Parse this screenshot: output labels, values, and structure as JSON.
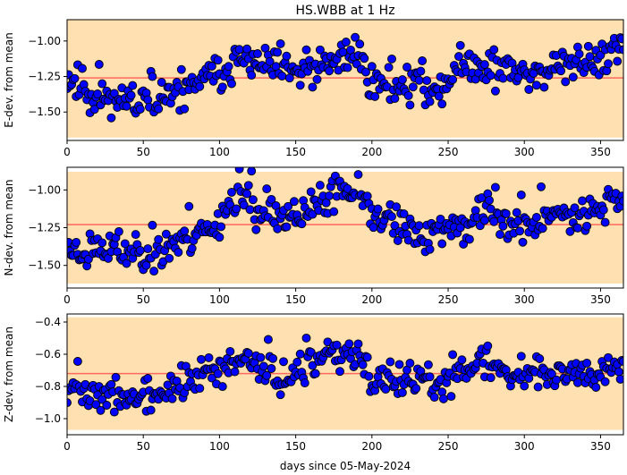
{
  "chart_data": {
    "type": "scatter",
    "title": "HS.WBB at 1 Hz",
    "xlabel": "days since 05-May-2024",
    "xlim": [
      0,
      365
    ],
    "x_ticks": [
      0,
      50,
      100,
      150,
      200,
      250,
      300,
      350
    ],
    "colors": {
      "point": "#0000ff",
      "mean_line": "#ff6a5e",
      "band": "#ffe0b0"
    },
    "panels": [
      {
        "ylabel": "E-dev. from mean",
        "ylim": [
          -1.7,
          -0.85
        ],
        "y_ticks": [
          -1.0,
          -1.25,
          -1.5
        ],
        "y_tick_labels": [
          "−1.00",
          "−1.25",
          "−1.50"
        ],
        "mean": -1.26,
        "band": [
          -1.68,
          -0.83
        ],
        "anchors": [
          [
            0,
            -1.25
          ],
          [
            15,
            -1.35
          ],
          [
            30,
            -1.4
          ],
          [
            45,
            -1.4
          ],
          [
            60,
            -1.45
          ],
          [
            75,
            -1.35
          ],
          [
            90,
            -1.27
          ],
          [
            100,
            -1.25
          ],
          [
            110,
            -1.13
          ],
          [
            130,
            -1.18
          ],
          [
            150,
            -1.22
          ],
          [
            170,
            -1.2
          ],
          [
            190,
            -1.05
          ],
          [
            200,
            -1.3
          ],
          [
            215,
            -1.3
          ],
          [
            230,
            -1.3
          ],
          [
            245,
            -1.35
          ],
          [
            255,
            -1.2
          ],
          [
            270,
            -1.15
          ],
          [
            285,
            -1.22
          ],
          [
            300,
            -1.2
          ],
          [
            315,
            -1.22
          ],
          [
            330,
            -1.18
          ],
          [
            345,
            -1.12
          ],
          [
            365,
            -1.05
          ]
        ],
        "spread": 0.09,
        "seed": 11
      },
      {
        "ylabel": "N-dev. from mean",
        "ylim": [
          -1.65,
          -0.85
        ],
        "y_ticks": [
          -1.0,
          -1.25,
          -1.5
        ],
        "y_tick_labels": [
          "−1.00",
          "−1.25",
          "−1.50"
        ],
        "mean": -1.23,
        "band": [
          -1.62,
          -0.88
        ],
        "anchors": [
          [
            0,
            -1.38
          ],
          [
            15,
            -1.42
          ],
          [
            30,
            -1.38
          ],
          [
            45,
            -1.4
          ],
          [
            60,
            -1.42
          ],
          [
            75,
            -1.32
          ],
          [
            90,
            -1.28
          ],
          [
            100,
            -1.18
          ],
          [
            110,
            -1.05
          ],
          [
            125,
            -1.12
          ],
          [
            140,
            -1.22
          ],
          [
            155,
            -1.15
          ],
          [
            175,
            -1.05
          ],
          [
            190,
            -1.0
          ],
          [
            200,
            -1.2
          ],
          [
            215,
            -1.22
          ],
          [
            230,
            -1.3
          ],
          [
            245,
            -1.25
          ],
          [
            260,
            -1.25
          ],
          [
            275,
            -1.12
          ],
          [
            290,
            -1.22
          ],
          [
            305,
            -1.22
          ],
          [
            320,
            -1.18
          ],
          [
            340,
            -1.12
          ],
          [
            365,
            -1.05
          ]
        ],
        "spread": 0.08,
        "seed": 23
      },
      {
        "ylabel": "Z-dev. from mean",
        "ylim": [
          -1.1,
          -0.35
        ],
        "y_ticks": [
          -0.4,
          -0.6,
          -0.8,
          -1.0
        ],
        "y_tick_labels": [
          "−0.4",
          "−0.6",
          "−0.8",
          "−1.0"
        ],
        "mean": -0.72,
        "band": [
          -1.07,
          -0.37
        ],
        "anchors": [
          [
            0,
            -0.78
          ],
          [
            15,
            -0.87
          ],
          [
            30,
            -0.85
          ],
          [
            45,
            -0.88
          ],
          [
            60,
            -0.85
          ],
          [
            75,
            -0.78
          ],
          [
            90,
            -0.73
          ],
          [
            100,
            -0.72
          ],
          [
            110,
            -0.65
          ],
          [
            125,
            -0.62
          ],
          [
            140,
            -0.75
          ],
          [
            155,
            -0.72
          ],
          [
            175,
            -0.6
          ],
          [
            190,
            -0.58
          ],
          [
            200,
            -0.8
          ],
          [
            215,
            -0.75
          ],
          [
            230,
            -0.78
          ],
          [
            245,
            -0.8
          ],
          [
            260,
            -0.68
          ],
          [
            275,
            -0.65
          ],
          [
            290,
            -0.72
          ],
          [
            305,
            -0.7
          ],
          [
            320,
            -0.72
          ],
          [
            340,
            -0.7
          ],
          [
            365,
            -0.65
          ]
        ],
        "spread": 0.07,
        "seed": 37
      }
    ]
  }
}
